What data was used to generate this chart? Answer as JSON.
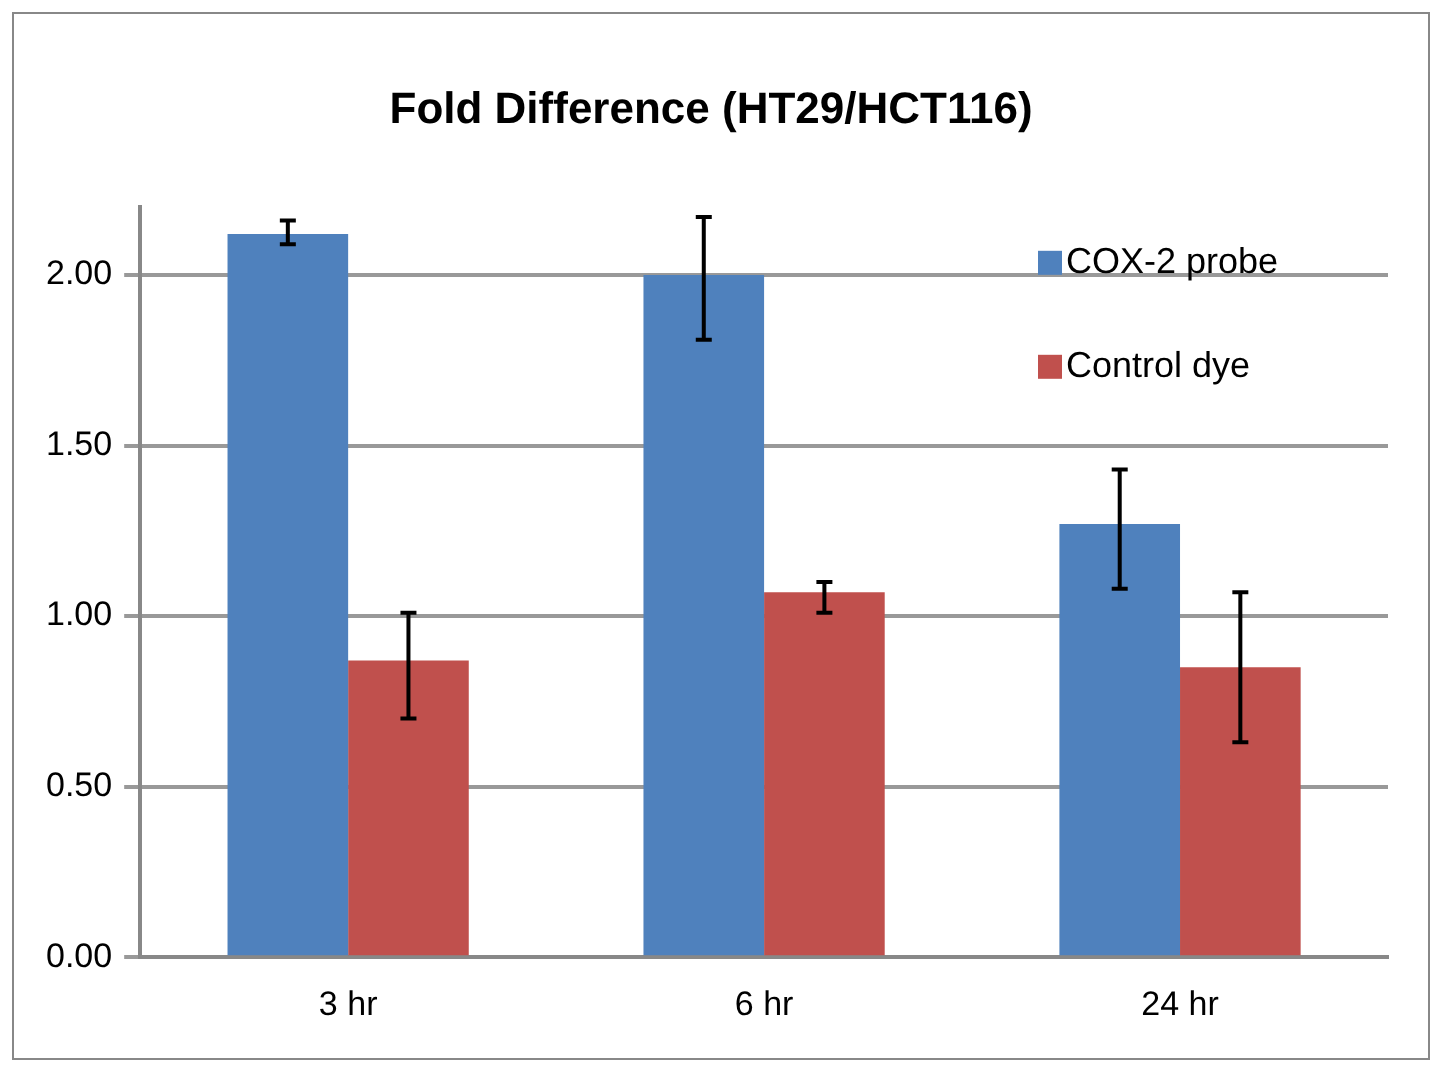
{
  "chart_data": {
    "type": "bar",
    "title": "Fold Difference (HT29/HCT116)",
    "categories": [
      "3 hr",
      "6 hr",
      "24 hr"
    ],
    "series": [
      {
        "name": "COX-2 probe",
        "color": "#4f81bd",
        "values": [
          2.12,
          2.0,
          1.27
        ],
        "errors": [
          [
            2.09,
            2.16
          ],
          [
            1.81,
            2.17
          ],
          [
            1.08,
            1.43
          ]
        ]
      },
      {
        "name": "Control dye",
        "color": "#c0504d",
        "values": [
          0.87,
          1.07,
          0.85
        ],
        "errors": [
          [
            0.7,
            1.01
          ],
          [
            1.01,
            1.1
          ],
          [
            0.63,
            1.07
          ]
        ]
      }
    ],
    "ylim": [
      0,
      2.2
    ],
    "yticks": [
      {
        "value": 0,
        "label": "0.00"
      },
      {
        "value": 0.5,
        "label": "0.50"
      },
      {
        "value": 1,
        "label": "1.00"
      },
      {
        "value": 1.5,
        "label": "1.50"
      },
      {
        "value": 2,
        "label": "2.00"
      }
    ],
    "grid": "y",
    "legend": "top right"
  }
}
